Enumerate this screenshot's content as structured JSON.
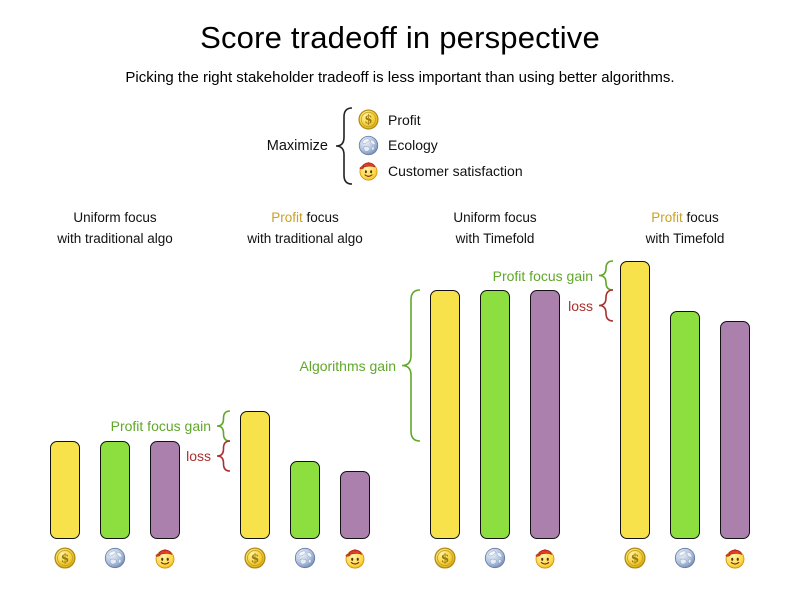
{
  "title": "Score tradeoff in perspective",
  "subtitle": "Picking the right stakeholder tradeoff is less important than using better algorithms.",
  "legend": {
    "label": "Maximize",
    "items": [
      {
        "label": "Profit",
        "icon": "coin-icon"
      },
      {
        "label": "Ecology",
        "icon": "globe-icon"
      },
      {
        "label": "Customer satisfaction",
        "icon": "smiley-icon"
      }
    ]
  },
  "colors": {
    "profit_bar": "#f7e24c",
    "ecology_bar": "#8cdf3f",
    "satisfaction_bar": "#ab80ad",
    "bar_outline": "#111111",
    "gain_text": "#60a829",
    "loss_text": "#ab2f2f",
    "profit_word": "#c9a227",
    "brace": "#222222"
  },
  "chart_data": {
    "type": "bar",
    "title": "Score tradeoff in perspective",
    "subtitle": "Picking the right stakeholder tradeoff is less important than using better algorithms.",
    "series": [
      "Profit",
      "Ecology",
      "Customer satisfaction"
    ],
    "value_unit": "relative score (no numeric axis shown; values estimated from bar heights)",
    "legend": {
      "label": "Maximize",
      "items": [
        "Profit",
        "Ecology",
        "Customer satisfaction"
      ]
    },
    "groups": [
      {
        "label": [
          "Uniform focus",
          "with traditional algo"
        ],
        "highlight_word": null,
        "values": [
          98,
          98,
          98
        ]
      },
      {
        "label": [
          "Profit focus",
          "with traditional algo"
        ],
        "highlight_word": "Profit",
        "values": [
          128,
          78,
          68
        ]
      },
      {
        "label": [
          "Uniform focus",
          "with Timefold"
        ],
        "highlight_word": null,
        "values": [
          249,
          249,
          249
        ]
      },
      {
        "label": [
          "Profit focus",
          "with Timefold"
        ],
        "highlight_word": "Profit",
        "values": [
          278,
          228,
          218
        ]
      }
    ],
    "annotations": [
      {
        "text": "Profit focus gain",
        "kind": "gain",
        "group_index": 1,
        "value_from": 128,
        "value_to": 98
      },
      {
        "text": "loss",
        "kind": "loss",
        "group_index": 1,
        "value_from": 98,
        "value_to": 68
      },
      {
        "text": "Algorithms gain",
        "kind": "gain",
        "group_index": 2,
        "value_from": 249,
        "value_to": 98
      },
      {
        "text": "Profit focus gain",
        "kind": "gain",
        "group_index": 3,
        "value_from": 278,
        "value_to": 249
      },
      {
        "text": "loss",
        "kind": "loss",
        "group_index": 3,
        "value_from": 249,
        "value_to": 218
      }
    ]
  }
}
